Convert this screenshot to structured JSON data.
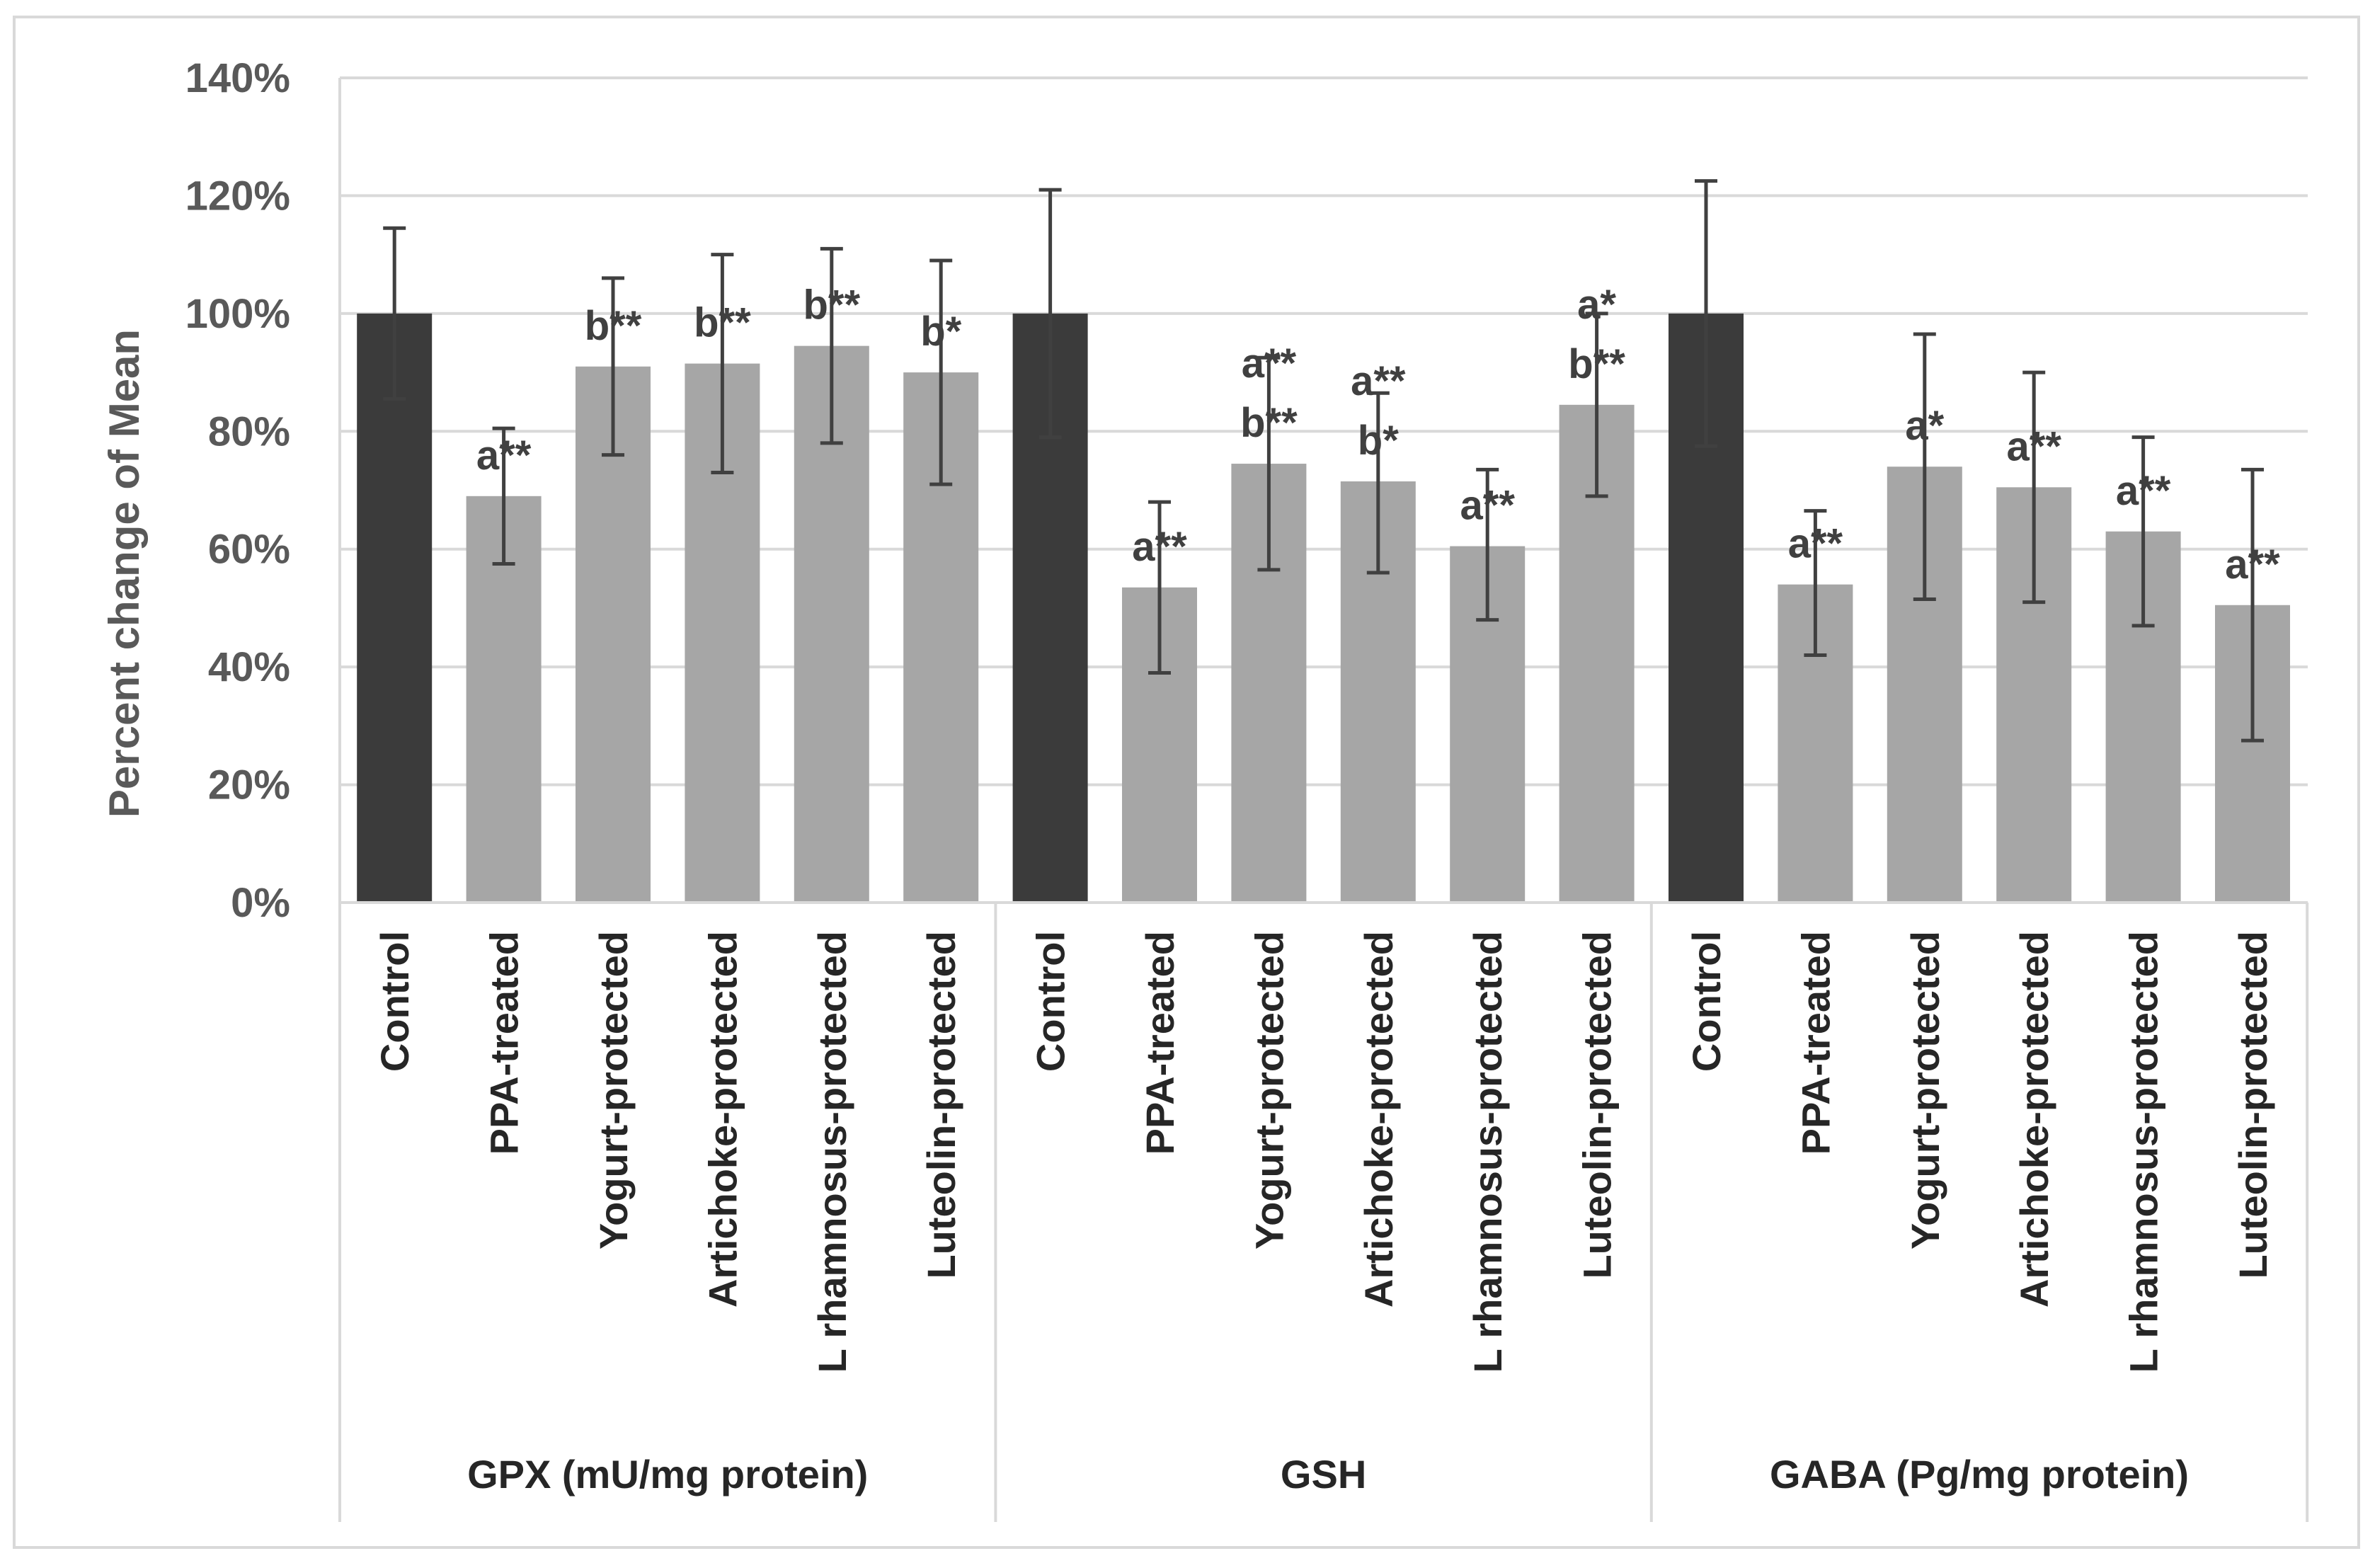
{
  "chart_data": {
    "type": "bar",
    "title": "",
    "xlabel": "",
    "ylabel": "Percent change of Mean",
    "ylim": [
      0,
      140
    ],
    "yticks": [
      0,
      20,
      40,
      60,
      80,
      100,
      120,
      140
    ],
    "ytick_labels": [
      "0%",
      "20%",
      "40%",
      "60%",
      "80%",
      "100%",
      "120%",
      "140%"
    ],
    "grid": true,
    "colors": {
      "control": "#3b3b3b",
      "treatment": "#a6a6a6",
      "error": "#404040",
      "grid": "#d9d9d9",
      "axis": "#d9d9d9"
    },
    "groups": [
      {
        "name": "GPX (mU/mg protein)",
        "bars": [
          {
            "category": "Control",
            "value": 100,
            "error_low": 85.5,
            "error_high": 114.5,
            "annotation": []
          },
          {
            "category": "PPA-treated",
            "value": 69,
            "error_low": 57.5,
            "error_high": 80.5,
            "annotation": [
              "a**"
            ]
          },
          {
            "category": "Yogurt-protected",
            "value": 91,
            "error_low": 76,
            "error_high": 106,
            "annotation": [
              "b**"
            ]
          },
          {
            "category": "Artichoke-protected",
            "value": 91.5,
            "error_low": 73,
            "error_high": 110,
            "annotation": [
              "b**"
            ]
          },
          {
            "category": "L rhamnosus-protected",
            "value": 94.5,
            "error_low": 78,
            "error_high": 111,
            "annotation": [
              "b**"
            ]
          },
          {
            "category": "Luteolin-protected",
            "value": 90,
            "error_low": 71,
            "error_high": 109,
            "annotation": [
              "b*"
            ]
          }
        ]
      },
      {
        "name": "GSH",
        "bars": [
          {
            "category": "Control",
            "value": 100,
            "error_low": 79,
            "error_high": 121,
            "annotation": []
          },
          {
            "category": "PPA-treated",
            "value": 53.5,
            "error_low": 39,
            "error_high": 68,
            "annotation": [
              "a**"
            ]
          },
          {
            "category": "Yogurt-protected",
            "value": 74.5,
            "error_low": 56.5,
            "error_high": 92.5,
            "annotation": [
              "a**",
              "b**"
            ]
          },
          {
            "category": "Artichoke-protected",
            "value": 71.5,
            "error_low": 56,
            "error_high": 86.5,
            "annotation": [
              "a**",
              "b*"
            ]
          },
          {
            "category": "L rhamnosus-protected",
            "value": 60.5,
            "error_low": 48,
            "error_high": 73.5,
            "annotation": [
              "a**"
            ]
          },
          {
            "category": "Luteolin-protected",
            "value": 84.5,
            "error_low": 69,
            "error_high": 100,
            "annotation": [
              "a*",
              "b**"
            ]
          }
        ]
      },
      {
        "name": "GABA (Pg/mg protein)",
        "bars": [
          {
            "category": "Control",
            "value": 100,
            "error_low": 77.5,
            "error_high": 122.5,
            "annotation": []
          },
          {
            "category": "PPA-treated",
            "value": 54,
            "error_low": 42,
            "error_high": 66.5,
            "annotation": [
              "a**"
            ]
          },
          {
            "category": "Yogurt-protected",
            "value": 74,
            "error_low": 51.5,
            "error_high": 96.5,
            "annotation": [
              "a*"
            ]
          },
          {
            "category": "Artichoke-protected",
            "value": 70.5,
            "error_low": 51,
            "error_high": 90,
            "annotation": [
              "a**"
            ]
          },
          {
            "category": "L rhamnosus-protected",
            "value": 63,
            "error_low": 47,
            "error_high": 79,
            "annotation": [
              "a**"
            ]
          },
          {
            "category": "Luteolin-protected",
            "value": 50.5,
            "error_low": 27.5,
            "error_high": 73.5,
            "annotation": [
              "a**"
            ]
          }
        ]
      }
    ]
  }
}
